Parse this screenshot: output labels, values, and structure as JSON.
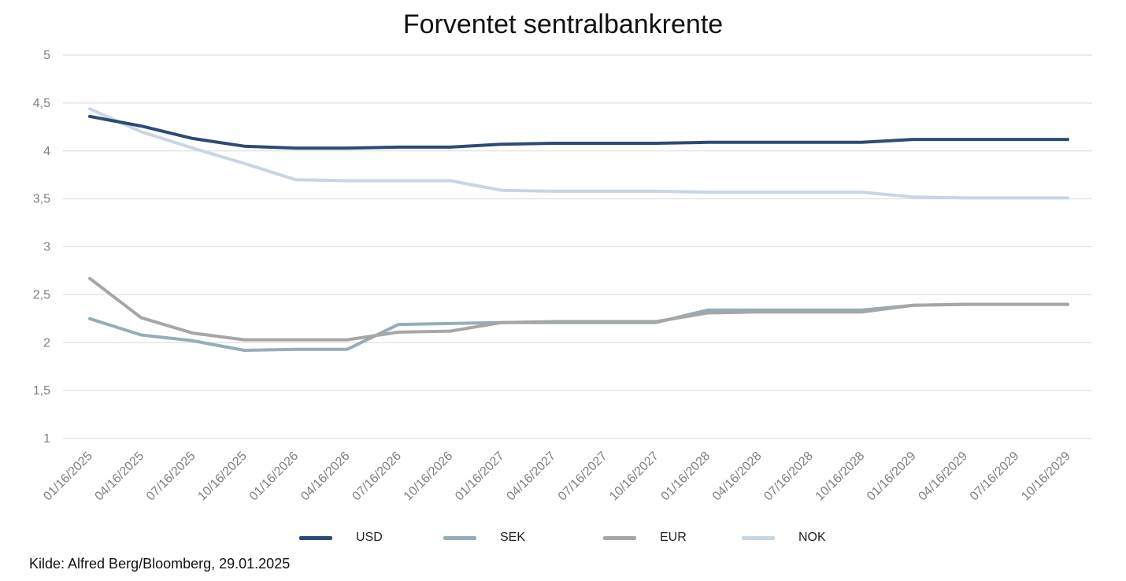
{
  "chart_data": {
    "type": "line",
    "title": "Forventet sentralbankrente",
    "xlabel": "",
    "ylabel": "",
    "ylim": [
      1,
      5
    ],
    "y_ticks": [
      "1",
      "1,5",
      "2",
      "2,5",
      "3",
      "3,5",
      "4",
      "4,5",
      "5"
    ],
    "grid": "horizontal",
    "legend_position": "bottom",
    "categories": [
      "01/16/2025",
      "04/16/2025",
      "07/16/2025",
      "10/16/2025",
      "01/16/2026",
      "04/16/2026",
      "07/16/2026",
      "10/16/2026",
      "01/16/2027",
      "04/16/2027",
      "07/16/2027",
      "10/16/2027",
      "01/16/2028",
      "04/16/2028",
      "07/16/2028",
      "10/16/2028",
      "01/16/2029",
      "04/16/2029",
      "07/16/2029",
      "10/16/2029"
    ],
    "series": [
      {
        "name": "USD",
        "color": "#2e4a75",
        "values": [
          4.36,
          4.26,
          4.13,
          4.05,
          4.03,
          4.03,
          4.04,
          4.04,
          4.07,
          4.08,
          4.08,
          4.08,
          4.09,
          4.09,
          4.09,
          4.09,
          4.12,
          4.12,
          4.12,
          4.12
        ]
      },
      {
        "name": "SEK",
        "color": "#94adb9",
        "values": [
          2.25,
          2.08,
          2.02,
          1.92,
          1.93,
          1.93,
          2.19,
          2.2,
          2.21,
          2.21,
          2.21,
          2.21,
          2.34,
          2.34,
          2.34,
          2.34,
          2.39,
          2.4,
          2.4,
          2.4
        ]
      },
      {
        "name": "EUR",
        "color": "#a6a6a6",
        "values": [
          2.67,
          2.26,
          2.1,
          2.03,
          2.03,
          2.03,
          2.11,
          2.12,
          2.21,
          2.22,
          2.22,
          2.22,
          2.31,
          2.32,
          2.32,
          2.32,
          2.39,
          2.4,
          2.4,
          2.4
        ]
      },
      {
        "name": "NOK",
        "color": "#c9d5e4",
        "values": [
          4.44,
          4.2,
          4.03,
          3.87,
          3.7,
          3.69,
          3.69,
          3.69,
          3.59,
          3.58,
          3.58,
          3.58,
          3.57,
          3.57,
          3.57,
          3.57,
          3.52,
          3.51,
          3.51,
          3.51
        ]
      }
    ]
  },
  "source_note": "Kilde: Alfred Berg/Bloomberg, 29.01.2025"
}
